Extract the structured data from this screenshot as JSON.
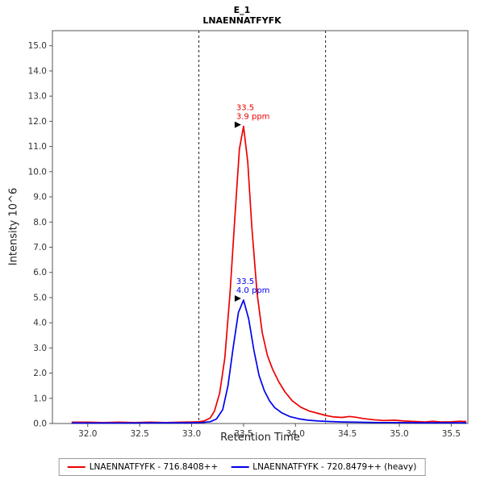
{
  "chart_data": {
    "type": "line",
    "title": "E_1",
    "subtitle": "LNAENNATFYFK",
    "xlabel": "Retention Time",
    "ylabel": "Intensity 10^6",
    "xlim": [
      31.66,
      35.66
    ],
    "ylim": [
      0,
      15.6
    ],
    "x_ticks": [
      32.0,
      32.5,
      33.0,
      33.5,
      34.0,
      34.5,
      35.0,
      35.5
    ],
    "y_ticks": [
      0.0,
      1.0,
      2.0,
      3.0,
      4.0,
      5.0,
      6.0,
      7.0,
      8.0,
      9.0,
      10.0,
      11.0,
      12.0,
      13.0,
      14.0,
      15.0
    ],
    "integration_boundaries": [
      33.07,
      34.29
    ],
    "axis_color": "#555555",
    "tick_label_color": "#333333",
    "boundary_color": "#222222",
    "legend_position": "bottom-center",
    "grid": false,
    "series": [
      {
        "name": "LNAENNATFYFK - 716.8408++",
        "color": "#ee0000",
        "points": [
          [
            31.85,
            0.05
          ],
          [
            32.0,
            0.05
          ],
          [
            32.15,
            0.04
          ],
          [
            32.3,
            0.05
          ],
          [
            32.45,
            0.04
          ],
          [
            32.6,
            0.05
          ],
          [
            32.75,
            0.04
          ],
          [
            32.9,
            0.05
          ],
          [
            33.0,
            0.06
          ],
          [
            33.07,
            0.07
          ],
          [
            33.12,
            0.1
          ],
          [
            33.18,
            0.22
          ],
          [
            33.22,
            0.5
          ],
          [
            33.27,
            1.2
          ],
          [
            33.32,
            2.6
          ],
          [
            33.37,
            5.2
          ],
          [
            33.42,
            8.4
          ],
          [
            33.46,
            10.9
          ],
          [
            33.5,
            11.8
          ],
          [
            33.54,
            10.4
          ],
          [
            33.58,
            7.8
          ],
          [
            33.63,
            5.2
          ],
          [
            33.68,
            3.6
          ],
          [
            33.73,
            2.7
          ],
          [
            33.78,
            2.15
          ],
          [
            33.84,
            1.65
          ],
          [
            33.9,
            1.25
          ],
          [
            33.97,
            0.9
          ],
          [
            34.05,
            0.65
          ],
          [
            34.13,
            0.5
          ],
          [
            34.22,
            0.4
          ],
          [
            34.29,
            0.32
          ],
          [
            34.37,
            0.26
          ],
          [
            34.45,
            0.24
          ],
          [
            34.52,
            0.28
          ],
          [
            34.58,
            0.25
          ],
          [
            34.65,
            0.2
          ],
          [
            34.75,
            0.15
          ],
          [
            34.85,
            0.12
          ],
          [
            34.95,
            0.13
          ],
          [
            35.05,
            0.1
          ],
          [
            35.15,
            0.08
          ],
          [
            35.25,
            0.06
          ],
          [
            35.32,
            0.09
          ],
          [
            35.4,
            0.06
          ],
          [
            35.5,
            0.07
          ],
          [
            35.58,
            0.09
          ],
          [
            35.64,
            0.08
          ]
        ]
      },
      {
        "name": "LNAENNATFYFK - 720.8479++ (heavy)",
        "color": "#0000ee",
        "points": [
          [
            31.85,
            0.02
          ],
          [
            32.3,
            0.02
          ],
          [
            32.8,
            0.03
          ],
          [
            33.0,
            0.03
          ],
          [
            33.1,
            0.04
          ],
          [
            33.18,
            0.07
          ],
          [
            33.24,
            0.18
          ],
          [
            33.3,
            0.55
          ],
          [
            33.35,
            1.5
          ],
          [
            33.4,
            3.0
          ],
          [
            33.45,
            4.4
          ],
          [
            33.5,
            4.9
          ],
          [
            33.55,
            4.15
          ],
          [
            33.6,
            2.9
          ],
          [
            33.65,
            1.9
          ],
          [
            33.7,
            1.3
          ],
          [
            33.75,
            0.9
          ],
          [
            33.8,
            0.63
          ],
          [
            33.87,
            0.42
          ],
          [
            33.95,
            0.27
          ],
          [
            34.03,
            0.19
          ],
          [
            34.12,
            0.13
          ],
          [
            34.22,
            0.1
          ],
          [
            34.32,
            0.08
          ],
          [
            34.45,
            0.06
          ],
          [
            34.6,
            0.05
          ],
          [
            34.8,
            0.04
          ],
          [
            35.0,
            0.04
          ],
          [
            35.2,
            0.03
          ],
          [
            35.4,
            0.03
          ],
          [
            35.64,
            0.03
          ]
        ]
      }
    ],
    "annotations": [
      {
        "x": 33.5,
        "y": 11.8,
        "lines": [
          "33.5",
          "3.9 ppm"
        ],
        "color": "#ee0000"
      },
      {
        "x": 33.5,
        "y": 4.9,
        "lines": [
          "33.5",
          "4.0 ppm"
        ],
        "color": "#0000ee"
      }
    ]
  }
}
